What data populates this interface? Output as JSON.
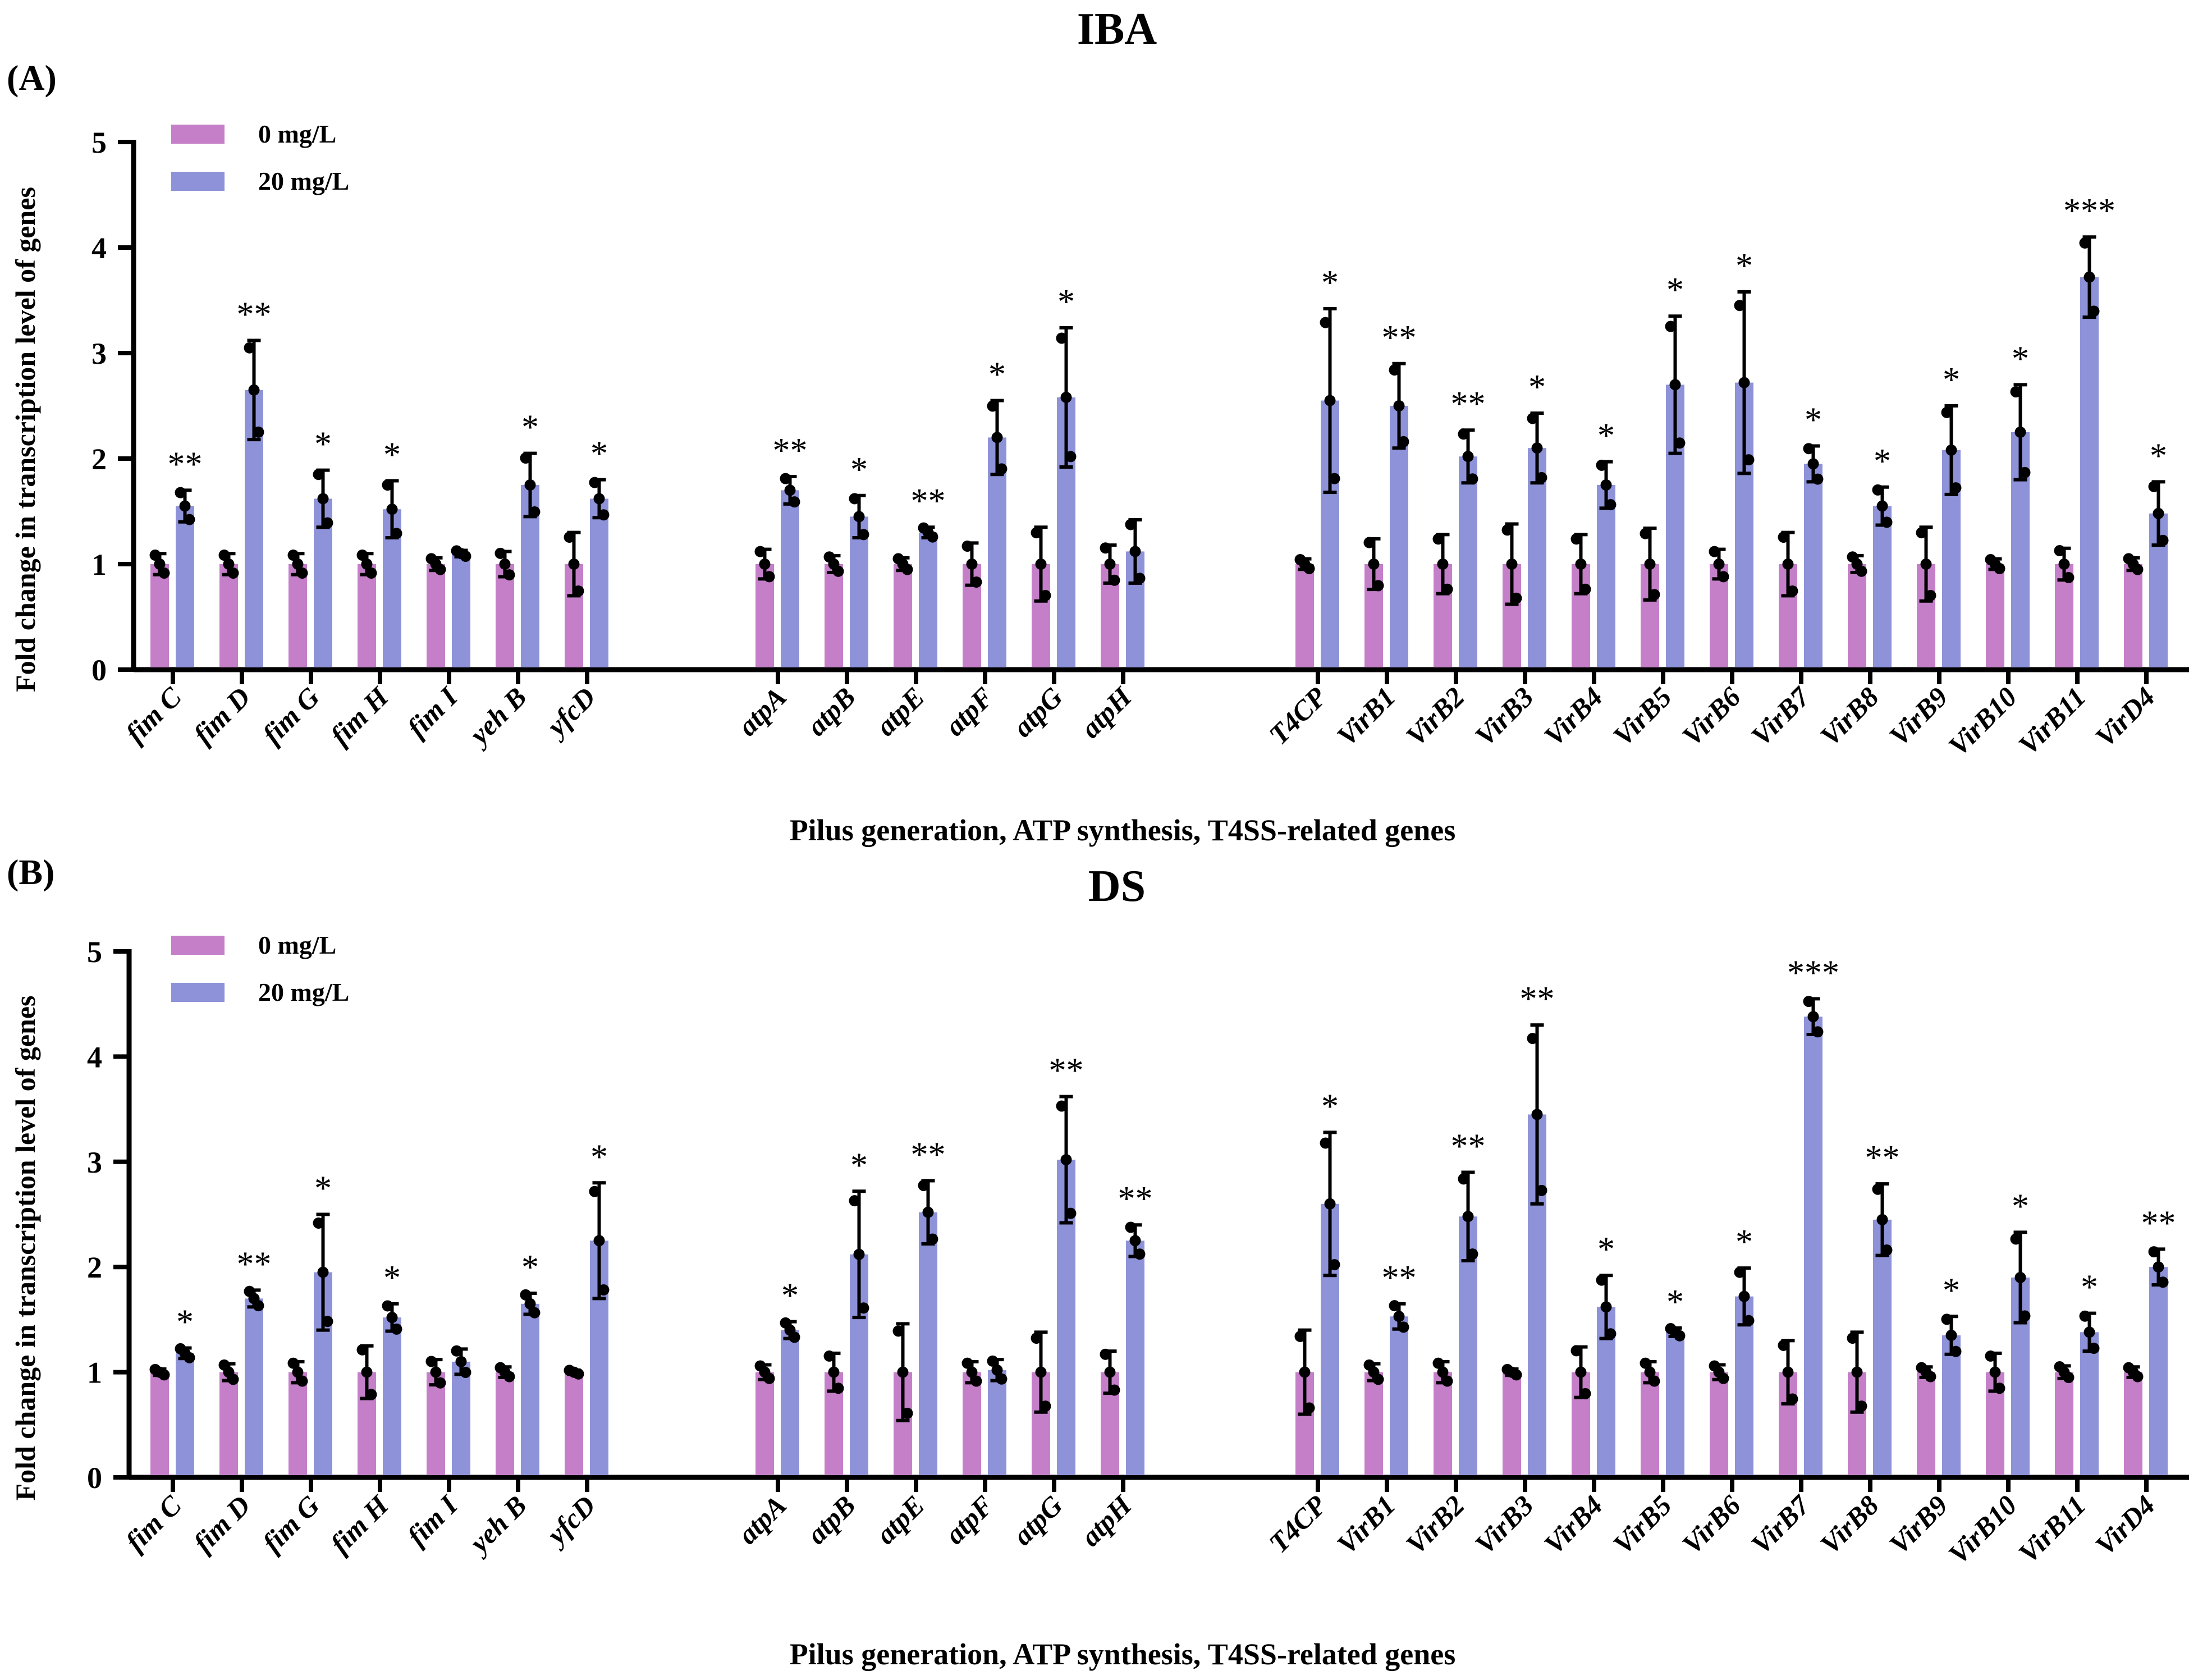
{
  "chart_data": [
    {
      "type": "bar",
      "panel": "(A)",
      "title": "IBA",
      "xlabel": "Pilus generation, ATP synthesis, T4SS-related genes",
      "ylabel": "Fold change in transcription level of genes",
      "ylim": [
        0,
        5
      ],
      "yticks": [
        "0",
        "1",
        "2",
        "3",
        "4",
        "5"
      ],
      "legend": {
        "position": "top-left"
      },
      "categories": [
        "fim C",
        "fim D",
        "fim G",
        "fim H",
        "fim I",
        "yeh B",
        "yfcD",
        "atpA",
        "atpB",
        "atpE",
        "atpF",
        "atpG",
        "atpH",
        "T4CP",
        "VirB1",
        "VirB2",
        "VirB3",
        "VirB4",
        "VirB5",
        "VirB6",
        "VirB7",
        "VirB8",
        "VirB9",
        "VirB10",
        "VirB11",
        "VirD4"
      ],
      "groups": [
        7,
        6,
        13
      ],
      "series": [
        {
          "name": "0 mg/L",
          "color": "#c47fc8",
          "values": [
            1,
            1,
            1,
            1,
            1,
            1,
            1,
            1,
            1,
            1,
            1,
            1,
            1,
            1,
            1,
            1,
            1,
            1,
            1,
            1,
            1,
            1,
            1,
            1,
            1,
            1
          ],
          "errors": [
            0.1,
            0.1,
            0.1,
            0.1,
            0.06,
            0.12,
            0.3,
            0.14,
            0.08,
            0.06,
            0.2,
            0.35,
            0.18,
            0.05,
            0.24,
            0.28,
            0.38,
            0.28,
            0.34,
            0.14,
            0.3,
            0.08,
            0.35,
            0.05,
            0.15,
            0.06
          ]
        },
        {
          "name": "20 mg/L",
          "color": "#8e92d8",
          "values": [
            1.55,
            2.65,
            1.62,
            1.52,
            1.1,
            1.75,
            1.62,
            1.7,
            1.45,
            1.3,
            2.2,
            2.58,
            1.12,
            2.55,
            2.5,
            2.02,
            2.1,
            1.75,
            2.7,
            2.72,
            1.95,
            1.55,
            2.08,
            2.25,
            3.72,
            1.48
          ],
          "errors": [
            0.15,
            0.47,
            0.27,
            0.27,
            0.03,
            0.3,
            0.18,
            0.13,
            0.2,
            0.05,
            0.35,
            0.66,
            0.3,
            0.87,
            0.4,
            0.25,
            0.33,
            0.22,
            0.65,
            0.86,
            0.17,
            0.18,
            0.42,
            0.45,
            0.38,
            0.3
          ]
        }
      ],
      "significance": [
        "**",
        "**",
        "*",
        "*",
        "",
        "*",
        "*",
        "**",
        "*",
        "**",
        "*",
        "*",
        "",
        "*",
        "**",
        "**",
        "*",
        "*",
        "*",
        "*",
        "*",
        "*",
        "*",
        "*",
        "***",
        "*"
      ]
    },
    {
      "type": "bar",
      "panel": "(B)",
      "title": "DS",
      "xlabel": "Pilus generation, ATP synthesis, T4SS-related genes",
      "ylabel": "Fold change in transcription level of genes",
      "ylim": [
        0,
        5
      ],
      "yticks": [
        "0",
        "1",
        "2",
        "3",
        "4",
        "5"
      ],
      "legend": {
        "position": "top-left"
      },
      "categories": [
        "fim C",
        "fim D",
        "fim G",
        "fim H",
        "fim I",
        "yeh B",
        "yfcD",
        "atpA",
        "atpB",
        "atpE",
        "atpF",
        "atpG",
        "atpH",
        "T4CP",
        "VirB1",
        "VirB2",
        "VirB3",
        "VirB4",
        "VirB5",
        "VirB6",
        "VirB7",
        "VirB8",
        "VirB9",
        "VirB10",
        "VirB11",
        "VirD4"
      ],
      "groups": [
        7,
        6,
        13
      ],
      "series": [
        {
          "name": "0 mg/L",
          "color": "#c47fc8",
          "values": [
            1,
            1,
            1,
            1,
            1,
            1,
            1,
            1,
            1,
            1,
            1,
            1,
            1,
            1,
            1,
            1,
            1,
            1,
            1,
            1,
            1,
            1,
            1,
            1,
            1,
            1
          ],
          "errors": [
            0.03,
            0.08,
            0.1,
            0.25,
            0.12,
            0.05,
            0.02,
            0.07,
            0.18,
            0.46,
            0.1,
            0.38,
            0.2,
            0.4,
            0.08,
            0.1,
            0.03,
            0.24,
            0.1,
            0.07,
            0.3,
            0.38,
            0.05,
            0.18,
            0.06,
            0.05
          ]
        },
        {
          "name": "20 mg/L",
          "color": "#8e92d8",
          "values": [
            1.18,
            1.7,
            1.95,
            1.52,
            1.1,
            1.65,
            2.25,
            1.4,
            2.12,
            2.52,
            1.02,
            3.02,
            2.25,
            2.6,
            1.53,
            2.48,
            3.45,
            1.62,
            1.38,
            1.72,
            4.38,
            2.45,
            1.35,
            1.9,
            1.38,
            2.0
          ],
          "errors": [
            0.05,
            0.08,
            0.55,
            0.13,
            0.12,
            0.1,
            0.55,
            0.08,
            0.6,
            0.3,
            0.1,
            0.6,
            0.15,
            0.68,
            0.12,
            0.42,
            0.85,
            0.3,
            0.04,
            0.27,
            0.17,
            0.34,
            0.18,
            0.43,
            0.18,
            0.17
          ]
        }
      ],
      "significance": [
        "*",
        "**",
        "*",
        "*",
        "",
        "*",
        "*",
        "*",
        "*",
        "**",
        "",
        "**",
        "**",
        "*",
        "**",
        "**",
        "**",
        "*",
        "*",
        "*",
        "***",
        "**",
        "*",
        "*",
        "*",
        "**"
      ]
    }
  ]
}
